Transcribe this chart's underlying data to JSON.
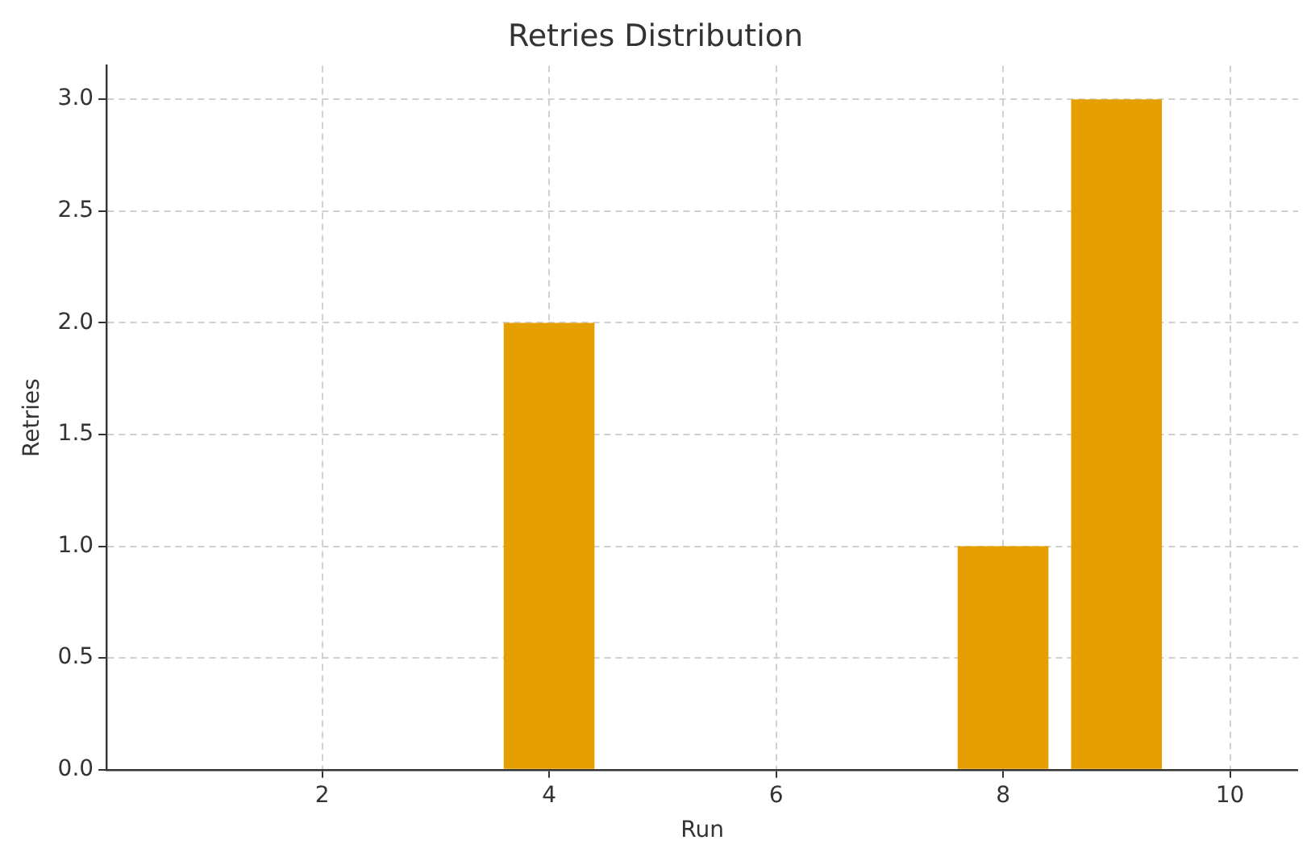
{
  "chart_data": {
    "type": "bar",
    "title": "Retries Distribution",
    "xlabel": "Run",
    "ylabel": "Retries",
    "x": [
      1,
      2,
      3,
      4,
      5,
      6,
      7,
      8,
      9,
      10
    ],
    "values": [
      0,
      0,
      0,
      2,
      0,
      0,
      0,
      1,
      3,
      0
    ],
    "color": "#e69f00",
    "xlim": [
      0.1,
      10.6
    ],
    "xticks": [
      2,
      4,
      6,
      8,
      10
    ],
    "ylim": [
      0,
      3.15
    ],
    "yticks": [
      {
        "value": 0,
        "label": "0.0"
      },
      {
        "value": 0.5,
        "label": "0.5"
      },
      {
        "value": 1,
        "label": "1.0"
      },
      {
        "value": 1.5,
        "label": "1.5"
      },
      {
        "value": 2,
        "label": "2.0"
      },
      {
        "value": 2.5,
        "label": "2.5"
      },
      {
        "value": 3,
        "label": "3.0"
      }
    ],
    "grid": true,
    "legend": false
  }
}
